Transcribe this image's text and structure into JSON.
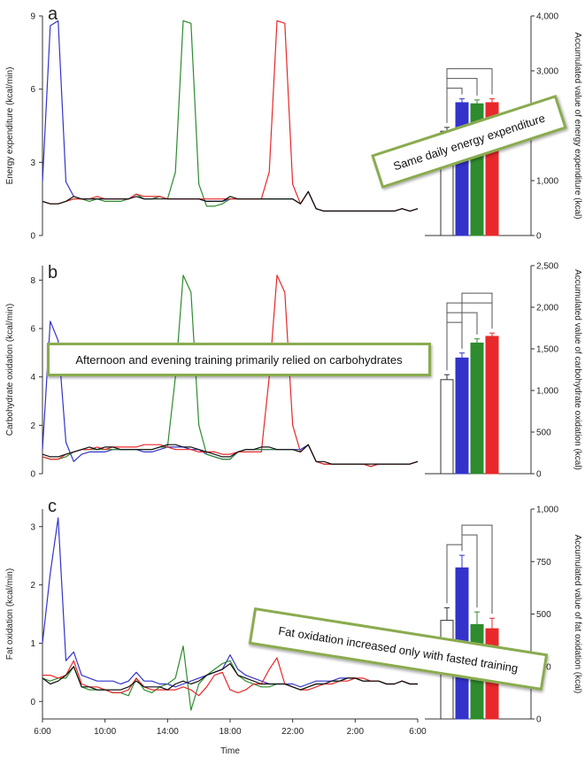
{
  "colors": {
    "fasted": "#3333cc",
    "afternoon": "#2e8b2e",
    "evening": "#e8282a",
    "control": "#111111"
  },
  "x_label": "Time",
  "x_ticks": [
    "6:00",
    "10:00",
    "14:00",
    "18:00",
    "22:00",
    "2:00",
    "6:00"
  ],
  "callouts": {
    "a": "Same daily energy expenditure",
    "b": "Afternoon and evening training primarily  relied on carbohydrates",
    "c": "Fat oxidation increased only with fasted training"
  },
  "chart_data": [
    {
      "type": "line",
      "panel": "a",
      "ylabel": "Energy expenditure (kcal/min)",
      "y_ticks": [
        "0",
        "3",
        "6",
        "9"
      ],
      "ylim": [
        0,
        9
      ],
      "x_hours": [
        6,
        6.5,
        7,
        7.5,
        8,
        8.5,
        9,
        9.5,
        10,
        10.5,
        11,
        11.5,
        12,
        12.5,
        13,
        13.5,
        14,
        14.5,
        15,
        15.5,
        16,
        16.5,
        17,
        17.5,
        18,
        18.5,
        19,
        19.5,
        20,
        20.5,
        21,
        21.5,
        22,
        22.5,
        23,
        23.5,
        24,
        24.5,
        25,
        25.5,
        26,
        26.5,
        27,
        27.5,
        28,
        28.5,
        29,
        29.5,
        30
      ],
      "series": [
        {
          "color": "blue",
          "values": [
            2.2,
            8.6,
            8.8,
            2.2,
            1.6,
            1.5,
            1.5,
            1.5,
            1.5,
            1.5,
            1.5,
            1.5,
            1.7,
            1.5,
            1.5,
            1.6,
            1.5,
            1.5,
            1.5,
            1.5,
            1.5,
            1.4,
            1.4,
            1.4,
            1.5,
            1.5,
            1.5,
            1.5,
            1.5,
            1.5,
            1.5,
            1.5,
            1.5,
            1.3,
            1.8,
            1.1,
            1.0,
            1.0,
            1.0,
            1.0,
            1.0,
            1.0,
            1.0,
            1.0,
            1.0,
            1.0,
            1.1,
            1.0,
            1.1
          ]
        },
        {
          "color": "green",
          "values": [
            1.4,
            1.3,
            1.3,
            1.4,
            1.5,
            1.5,
            1.4,
            1.5,
            1.4,
            1.4,
            1.4,
            1.5,
            1.7,
            1.5,
            1.5,
            1.6,
            1.5,
            2.6,
            8.8,
            8.7,
            2.1,
            1.2,
            1.2,
            1.3,
            1.5,
            1.5,
            1.5,
            1.5,
            1.5,
            1.5,
            1.5,
            1.5,
            1.5,
            1.3,
            1.8,
            1.1,
            1.0,
            1.0,
            1.0,
            1.0,
            1.0,
            1.0,
            1.0,
            1.0,
            1.0,
            1.0,
            1.1,
            1.0,
            1.1
          ]
        },
        {
          "color": "red",
          "values": [
            1.4,
            1.3,
            1.3,
            1.4,
            1.5,
            1.5,
            1.5,
            1.6,
            1.5,
            1.5,
            1.5,
            1.5,
            1.7,
            1.6,
            1.6,
            1.6,
            1.5,
            1.5,
            1.5,
            1.5,
            1.5,
            1.5,
            1.5,
            1.5,
            1.5,
            1.5,
            1.5,
            1.5,
            1.5,
            2.6,
            8.8,
            8.7,
            2.1,
            1.3,
            1.8,
            1.1,
            1.0,
            1.0,
            1.0,
            1.0,
            1.0,
            1.0,
            1.0,
            1.0,
            1.0,
            1.0,
            1.1,
            1.0,
            1.1
          ]
        },
        {
          "color": "black",
          "values": [
            1.4,
            1.3,
            1.3,
            1.4,
            1.6,
            1.5,
            1.5,
            1.5,
            1.5,
            1.5,
            1.5,
            1.5,
            1.6,
            1.5,
            1.5,
            1.5,
            1.5,
            1.5,
            1.5,
            1.5,
            1.5,
            1.4,
            1.4,
            1.4,
            1.6,
            1.5,
            1.5,
            1.5,
            1.5,
            1.5,
            1.5,
            1.5,
            1.5,
            1.3,
            1.8,
            1.1,
            1.0,
            1.0,
            1.0,
            1.0,
            1.0,
            1.0,
            1.0,
            1.0,
            1.0,
            1.0,
            1.1,
            1.0,
            1.1
          ]
        }
      ],
      "bars": {
        "ylabel": "Accumulated value of energy expenditure (kcal)",
        "y_ticks": [
          "0",
          "1,000",
          "2,000",
          "3,000",
          "4,000"
        ],
        "ylim": [
          0,
          4000
        ],
        "values": [
          1900,
          2420,
          2400,
          2420
        ],
        "errors": [
          70,
          70,
          70,
          70
        ],
        "colors": [
          "white",
          "blue",
          "green",
          "red"
        ],
        "brackets": [
          [
            0,
            1,
            0
          ],
          [
            0,
            2,
            1
          ],
          [
            0,
            3,
            2
          ]
        ]
      }
    },
    {
      "type": "line",
      "panel": "b",
      "ylabel": "Carbohydrate oxidation (kcal/min)",
      "y_ticks": [
        "0",
        "2",
        "4",
        "6",
        "8"
      ],
      "ylim": [
        0,
        8.6
      ],
      "x_hours": [
        6,
        6.5,
        7,
        7.5,
        8,
        8.5,
        9,
        9.5,
        10,
        10.5,
        11,
        11.5,
        12,
        12.5,
        13,
        13.5,
        14,
        14.5,
        15,
        15.5,
        16,
        16.5,
        17,
        17.5,
        18,
        18.5,
        19,
        19.5,
        20,
        20.5,
        21,
        21.5,
        22,
        22.5,
        23,
        23.5,
        24,
        24.5,
        25,
        25.5,
        26,
        26.5,
        27,
        27.5,
        28,
        28.5,
        29,
        29.5,
        30
      ],
      "series": [
        {
          "color": "blue",
          "values": [
            1.0,
            6.3,
            5.5,
            1.3,
            0.5,
            0.8,
            0.9,
            0.9,
            0.9,
            1.0,
            1.0,
            1.0,
            1.0,
            0.9,
            0.9,
            1.0,
            1.1,
            1.1,
            1.1,
            1.0,
            1.0,
            0.8,
            0.7,
            0.6,
            0.6,
            0.9,
            1.0,
            1.0,
            1.0,
            1.0,
            1.0,
            1.0,
            1.0,
            1.0,
            1.2,
            0.5,
            0.4,
            0.4,
            0.4,
            0.4,
            0.4,
            0.4,
            0.3,
            0.4,
            0.4,
            0.4,
            0.4,
            0.4,
            0.5
          ]
        },
        {
          "color": "green",
          "values": [
            0.7,
            0.6,
            0.6,
            0.7,
            0.9,
            1.0,
            1.0,
            1.0,
            1.0,
            1.0,
            1.0,
            1.0,
            1.0,
            1.0,
            1.0,
            1.1,
            1.1,
            4.0,
            8.2,
            7.5,
            2.0,
            0.8,
            0.7,
            0.6,
            0.6,
            0.9,
            1.0,
            1.0,
            1.0,
            1.0,
            1.0,
            1.0,
            1.0,
            0.9,
            1.2,
            0.5,
            0.4,
            0.4,
            0.4,
            0.4,
            0.4,
            0.4,
            0.3,
            0.4,
            0.4,
            0.4,
            0.4,
            0.4,
            0.5
          ]
        },
        {
          "color": "red",
          "values": [
            0.7,
            0.6,
            0.6,
            0.8,
            0.9,
            1.0,
            1.0,
            1.1,
            1.0,
            1.1,
            1.1,
            1.1,
            1.1,
            1.2,
            1.2,
            1.2,
            1.1,
            1.0,
            1.0,
            1.0,
            0.9,
            0.9,
            0.9,
            0.8,
            0.8,
            0.9,
            0.9,
            0.9,
            0.9,
            4.0,
            8.2,
            7.5,
            2.0,
            0.9,
            1.2,
            0.5,
            0.4,
            0.4,
            0.4,
            0.4,
            0.4,
            0.4,
            0.3,
            0.4,
            0.4,
            0.4,
            0.4,
            0.4,
            0.5
          ]
        },
        {
          "color": "black",
          "values": [
            0.8,
            0.7,
            0.7,
            0.8,
            0.9,
            1.0,
            1.1,
            1.0,
            1.1,
            1.1,
            1.0,
            1.0,
            1.0,
            1.0,
            1.0,
            1.1,
            1.2,
            1.2,
            1.1,
            1.1,
            1.0,
            0.9,
            0.8,
            0.7,
            0.7,
            0.9,
            1.0,
            1.0,
            1.1,
            1.1,
            1.0,
            1.0,
            1.0,
            0.9,
            1.2,
            0.5,
            0.5,
            0.4,
            0.4,
            0.4,
            0.4,
            0.4,
            0.4,
            0.4,
            0.4,
            0.4,
            0.4,
            0.4,
            0.5
          ]
        }
      ],
      "bars": {
        "ylabel": "Accumulated value of carbohydrate oxidation (kcal)",
        "y_ticks": [
          "0",
          "500",
          "1,000",
          "1,500",
          "2,000",
          "2,500"
        ],
        "ylim": [
          0,
          2500
        ],
        "values": [
          1130,
          1390,
          1570,
          1650
        ],
        "errors": [
          60,
          60,
          50,
          40
        ],
        "colors": [
          "white",
          "blue",
          "green",
          "red"
        ],
        "brackets": [
          [
            0,
            1,
            0
          ],
          [
            0,
            2,
            1
          ],
          [
            0,
            3,
            2
          ],
          [
            1,
            3,
            3
          ]
        ]
      }
    },
    {
      "type": "line",
      "panel": "c",
      "ylabel": "Fat oxidation (kcal/min)",
      "y_ticks": [
        "0",
        "1",
        "2",
        "3"
      ],
      "ylim": [
        -0.3,
        3.3
      ],
      "x_hours": [
        6,
        6.5,
        7,
        7.5,
        8,
        8.5,
        9,
        9.5,
        10,
        10.5,
        11,
        11.5,
        12,
        12.5,
        13,
        13.5,
        14,
        14.5,
        15,
        15.5,
        16,
        16.5,
        17,
        17.5,
        18,
        18.5,
        19,
        19.5,
        20,
        20.5,
        21,
        21.5,
        22,
        22.5,
        23,
        23.5,
        24,
        24.5,
        25,
        25.5,
        26,
        26.5,
        27,
        27.5,
        28,
        28.5,
        29,
        29.5,
        30
      ],
      "series": [
        {
          "color": "blue",
          "values": [
            1.0,
            2.2,
            3.15,
            0.7,
            0.85,
            0.45,
            0.4,
            0.35,
            0.35,
            0.35,
            0.3,
            0.35,
            0.5,
            0.35,
            0.35,
            0.3,
            0.3,
            0.25,
            0.3,
            0.35,
            0.4,
            0.45,
            0.5,
            0.55,
            0.8,
            0.55,
            0.45,
            0.4,
            0.35,
            0.3,
            0.3,
            0.3,
            0.3,
            0.25,
            0.3,
            0.35,
            0.35,
            0.35,
            0.4,
            0.4,
            0.4,
            0.35,
            0.35,
            0.35,
            0.3,
            0.3,
            0.35,
            0.3,
            0.3
          ]
        },
        {
          "color": "green",
          "values": [
            0.4,
            0.35,
            0.4,
            0.4,
            0.6,
            0.25,
            0.2,
            0.2,
            0.2,
            0.15,
            0.15,
            0.1,
            0.4,
            0.2,
            0.15,
            0.25,
            0.3,
            0.4,
            0.95,
            -0.15,
            0.3,
            0.45,
            0.55,
            0.65,
            0.7,
            0.45,
            0.35,
            0.3,
            0.25,
            0.25,
            0.3,
            0.3,
            0.25,
            0.2,
            0.25,
            0.3,
            0.3,
            0.35,
            0.35,
            0.4,
            0.4,
            0.35,
            0.35,
            0.35,
            0.3,
            0.3,
            0.35,
            0.3,
            0.3
          ]
        },
        {
          "color": "red",
          "values": [
            0.45,
            0.45,
            0.4,
            0.45,
            0.7,
            0.3,
            0.25,
            0.25,
            0.2,
            0.15,
            0.15,
            0.2,
            0.4,
            0.25,
            0.2,
            0.2,
            0.2,
            0.2,
            0.25,
            0.2,
            0.1,
            0.25,
            0.45,
            0.5,
            0.2,
            0.15,
            0.2,
            0.3,
            0.3,
            0.55,
            0.75,
            0.3,
            0.25,
            0.2,
            0.2,
            0.25,
            0.3,
            0.3,
            0.35,
            0.35,
            0.4,
            0.4,
            0.35,
            0.35,
            0.3,
            0.3,
            0.35,
            0.3,
            0.3
          ]
        },
        {
          "color": "black",
          "values": [
            0.4,
            0.3,
            0.35,
            0.45,
            0.6,
            0.25,
            0.25,
            0.2,
            0.2,
            0.2,
            0.2,
            0.25,
            0.35,
            0.25,
            0.25,
            0.25,
            0.2,
            0.3,
            0.35,
            0.3,
            0.35,
            0.45,
            0.5,
            0.55,
            0.65,
            0.45,
            0.4,
            0.35,
            0.3,
            0.3,
            0.3,
            0.3,
            0.25,
            0.2,
            0.25,
            0.3,
            0.3,
            0.35,
            0.35,
            0.4,
            0.4,
            0.35,
            0.35,
            0.35,
            0.3,
            0.3,
            0.35,
            0.3,
            0.3
          ]
        }
      ],
      "bars": {
        "ylabel": "Accumulated value of fat oxidation (kcal)",
        "y_ticks": [
          "0",
          "250",
          "500",
          "750",
          "1,000"
        ],
        "ylim": [
          0,
          1000
        ],
        "values": [
          470,
          720,
          450,
          430
        ],
        "errors": [
          60,
          60,
          60,
          50
        ],
        "colors": [
          "white",
          "blue",
          "green",
          "red"
        ],
        "brackets": [
          [
            0,
            1,
            0
          ],
          [
            1,
            2,
            1
          ],
          [
            1,
            3,
            2
          ]
        ]
      }
    }
  ]
}
